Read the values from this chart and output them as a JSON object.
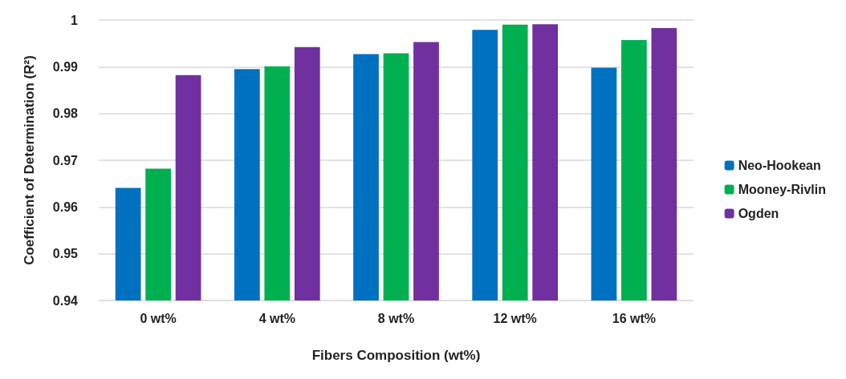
{
  "chart_data": {
    "type": "bar",
    "xlabel": "Fibers Composition (wt%)",
    "ylabel": "Coefficient of Determination (R²)",
    "categories": [
      "0 wt%",
      "4 wt%",
      "8 wt%",
      "12 wt%",
      "16 wt%"
    ],
    "series": [
      {
        "name": "Neo-Hookean",
        "color": "#0070c0",
        "values": [
          0.9641,
          0.9895,
          0.9927,
          0.9979,
          0.9898
        ]
      },
      {
        "name": "Mooney-Rivlin",
        "color": "#00b050",
        "values": [
          0.9682,
          0.9901,
          0.9929,
          0.999,
          0.9957
        ]
      },
      {
        "name": "Ogden",
        "color": "#7030a0",
        "values": [
          0.9882,
          0.9942,
          0.9953,
          0.9991,
          0.9983
        ]
      }
    ],
    "ylim": [
      0.94,
      1
    ],
    "yticks": [
      0.94,
      0.95,
      0.96,
      0.97,
      0.98,
      0.99,
      1
    ],
    "grid": "y",
    "legend": "right"
  }
}
